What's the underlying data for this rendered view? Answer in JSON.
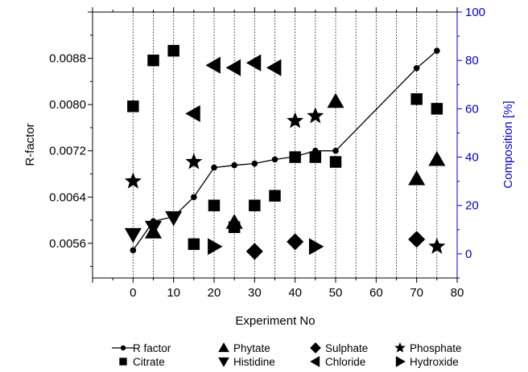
{
  "chart_data": {
    "type": "scatter",
    "xlabel": "Experiment No",
    "ylabel": "R-factor",
    "y2label": "Composition [%]",
    "xlim": [
      -10,
      80
    ],
    "ylim": [
      0.005,
      0.0096
    ],
    "y2lim": [
      -10,
      100
    ],
    "xticks": [
      0,
      10,
      20,
      30,
      40,
      50,
      60,
      70,
      80
    ],
    "yticks": [
      0.0056,
      0.0064,
      0.0072,
      0.008,
      0.0088
    ],
    "ytick_labels": [
      "0.0056",
      "0.0064",
      "0.0072",
      "0.0080",
      "0.0088"
    ],
    "y2ticks": [
      0,
      20,
      40,
      60,
      80,
      100
    ],
    "vgrid_x": [
      0,
      5,
      10,
      15,
      20,
      25,
      30,
      35,
      40,
      45,
      50,
      55,
      60,
      65,
      70,
      75
    ],
    "grid": "vertical dotted lines",
    "legend_position": "bottom",
    "colors": {
      "axis": "#000000",
      "right_axis": "#0000cc",
      "marker": "#000000"
    },
    "rfactor": {
      "name": "R factor",
      "x": [
        0,
        5,
        10,
        15,
        20,
        25,
        30,
        35,
        40,
        45,
        50,
        70,
        75
      ],
      "y": [
        0.00548,
        0.00598,
        0.00606,
        0.0064,
        0.00691,
        0.00695,
        0.00698,
        0.00705,
        0.0071,
        0.0072,
        0.0072,
        0.00863,
        0.00893
      ]
    },
    "composition": [
      {
        "name": "Citrate",
        "marker": "square",
        "x": [
          0,
          5,
          10,
          15,
          20,
          25,
          30,
          35,
          40,
          45,
          50,
          70,
          75
        ],
        "y": [
          61,
          80,
          84,
          4,
          20,
          11,
          20,
          24,
          40,
          40,
          38,
          64,
          60
        ]
      },
      {
        "name": "Phytate",
        "marker": "triangle-up",
        "x": [
          5,
          25,
          50,
          70,
          75
        ],
        "y": [
          9,
          13,
          63,
          31,
          39
        ]
      },
      {
        "name": "Histidine",
        "marker": "triangle-down",
        "x": [
          0,
          5,
          10
        ],
        "y": [
          8,
          11,
          15
        ]
      },
      {
        "name": "Sulphate",
        "marker": "diamond",
        "x": [
          30,
          40,
          70
        ],
        "y": [
          1,
          5,
          6
        ]
      },
      {
        "name": "Chloride",
        "marker": "triangle-left",
        "x": [
          15,
          20,
          25,
          30,
          35
        ],
        "y": [
          58,
          78,
          77,
          79,
          77
        ]
      },
      {
        "name": "Phosphate",
        "marker": "star",
        "x": [
          0,
          15,
          40,
          45,
          75
        ],
        "y": [
          30,
          38,
          55,
          57,
          3
        ]
      },
      {
        "name": "Hydroxide",
        "marker": "triangle-right",
        "x": [
          20,
          45
        ],
        "y": [
          3,
          3
        ]
      }
    ]
  }
}
